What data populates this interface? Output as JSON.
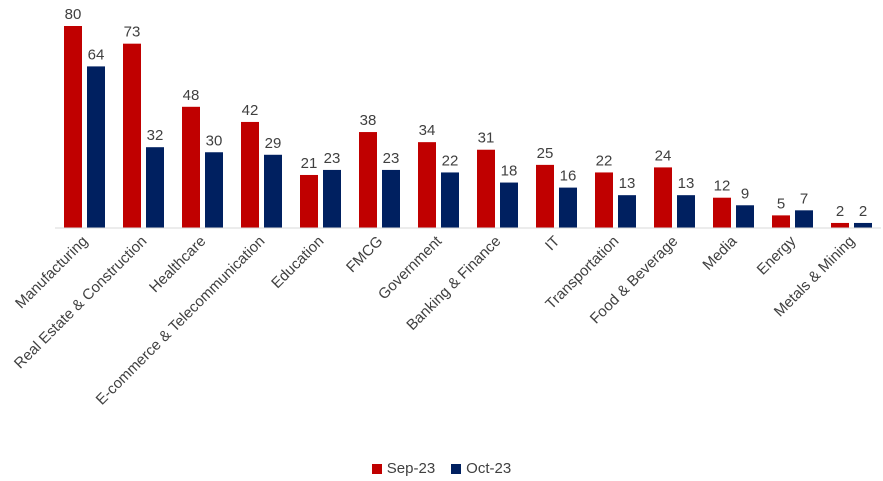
{
  "chart_data": {
    "type": "bar",
    "categories": [
      "Manufacturing",
      "Real Estate & Construction",
      "Healthcare",
      "E-commerce & Telecommunication",
      "Education",
      "FMCG",
      "Government",
      "Banking & Finance",
      "IT",
      "Transportation",
      "Food & Beverage",
      "Media",
      "Energy",
      "Metals & Mining"
    ],
    "series": [
      {
        "name": "Sep-23",
        "color": "#C00000",
        "values": [
          80,
          73,
          48,
          42,
          21,
          38,
          34,
          31,
          25,
          22,
          24,
          12,
          5,
          2
        ]
      },
      {
        "name": "Oct-23",
        "color": "#002060",
        "values": [
          64,
          32,
          30,
          29,
          23,
          23,
          22,
          18,
          16,
          13,
          13,
          9,
          7,
          2
        ]
      }
    ],
    "ylim": [
      0,
      80
    ],
    "grid": false,
    "legend_position": "bottom",
    "data_labels": true
  }
}
